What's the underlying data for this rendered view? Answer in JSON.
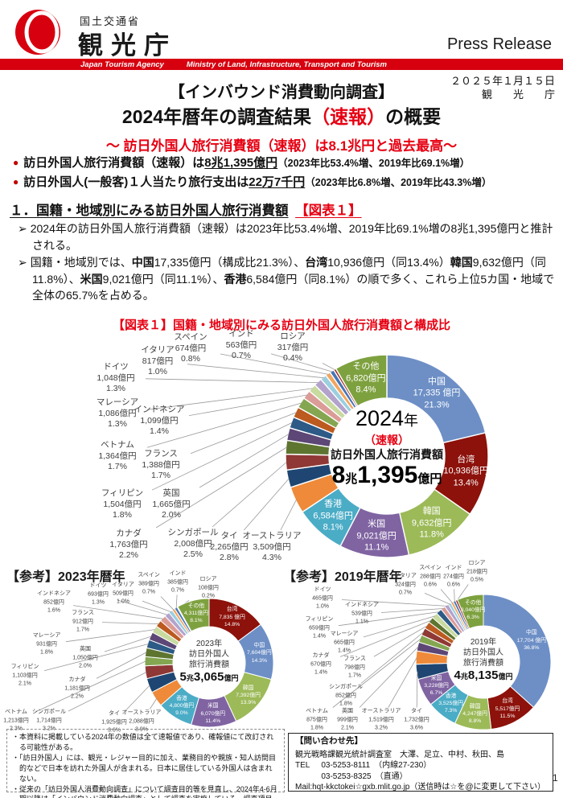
{
  "header": {
    "ministry": "国土交通省",
    "agency": "観光庁",
    "press_release": "Press Release",
    "banner_left": "Japan Tourism Agency",
    "banner_right": "Ministry of Land, Infrastructure, Transport and Tourism",
    "brand_red": "#d7000f"
  },
  "date_block": {
    "date": "２０２５年１月１５日",
    "org": "観　　光　　庁"
  },
  "title": {
    "survey": "【インバウンド消費動向調査】",
    "main_rich": [
      {
        "t": "2024年暦年の調査結果"
      },
      {
        "t": "（速報）",
        "red": 1
      },
      {
        "t": "の概要"
      }
    ],
    "subtitle": "～ 訪日外国人旅行消費額（速報）は8.1兆円と過去最高～"
  },
  "key_bullets": [
    [
      {
        "t": "訪日外国人旅行消費額（速報）は"
      },
      {
        "t": "8兆1,395億円",
        "u": 1
      },
      {
        "t": "（2023年比53.4%増、2019年比69.1%増）",
        "sm": 1
      }
    ],
    [
      {
        "t": "訪日外国人(一般客)１人当たり旅行支出は"
      },
      {
        "t": "22万7千円",
        "u": 1
      },
      {
        "t": "（2023年比6.8%増、2019年比43.3%増）",
        "sm": 1
      }
    ]
  ],
  "section1": {
    "heading_main": "１．国籍・地域別にみる訪日外国人旅行消費額",
    "heading_ref": "【図表１】",
    "point1": [
      {
        "t": "2024年の訪日外国人旅行消費額（速報）は2023年比53.4%増、2019年比69.1%増の8兆1,395億円と推計される。"
      }
    ],
    "point2": [
      {
        "t": "国籍・地域別では、"
      },
      {
        "t": "中国",
        "b": 1
      },
      {
        "t": "17,335億円（構成比21.3%）、"
      },
      {
        "t": "台湾",
        "b": 1
      },
      {
        "t": "10,936億円（同13.4%）"
      },
      {
        "t": "韓国",
        "b": 1
      },
      {
        "t": "9,632億円（同11.8%）、"
      },
      {
        "t": "米国",
        "b": 1
      },
      {
        "t": "9,021億円（同11.1%）、"
      },
      {
        "t": "香港",
        "b": 1
      },
      {
        "t": "6,584億円（同8.1%）の順で多く、これら上位5カ国・地域で全体の65.7%を占める。"
      }
    ]
  },
  "chart_data": [
    {
      "id": "y2024",
      "type": "pie",
      "title": "【図表１】国籍・地域別にみる訪日外国人旅行消費額と構成比",
      "unit": "億円",
      "legend_position": "callout-labels",
      "center": {
        "year_num": "2024",
        "year_suffix": "年",
        "note": "（速報）",
        "label": "訪日外国人旅行消費額",
        "t1": "8",
        "u1": "兆",
        "t2": "1,395",
        "u2": "億円"
      },
      "segments": [
        {
          "name": "中国",
          "value": 17335,
          "value_label": "17,335 億円",
          "pct": 21.3,
          "pct_label": "21.3%",
          "color": "#6D8FC6",
          "inside": true
        },
        {
          "name": "台湾",
          "value": 10936,
          "value_label": "10,936億円",
          "pct": 13.4,
          "pct_label": "13.4%",
          "color": "#8C120B",
          "inside": true
        },
        {
          "name": "韓国",
          "value": 9632,
          "value_label": "9,632億円",
          "pct": 11.8,
          "pct_label": "11.8%",
          "color": "#9CBA58",
          "inside": true
        },
        {
          "name": "米国",
          "value": 9021,
          "value_label": "9,021億円",
          "pct": 11.1,
          "pct_label": "11.1%",
          "color": "#8064A2",
          "inside": true
        },
        {
          "name": "香港",
          "value": 6584,
          "value_label": "6,584億円",
          "pct": 8.1,
          "pct_label": "8.1%",
          "color": "#4BACC6",
          "inside": true
        },
        {
          "name": "オーストラリア",
          "value": 3509,
          "value_label": "3,509億円",
          "pct": 4.3,
          "pct_label": "4.3%",
          "color": "#EE8A39",
          "inside": false
        },
        {
          "name": "タイ",
          "value": 2265,
          "value_label": "2,265億円",
          "pct": 2.8,
          "pct_label": "2.8%",
          "color": "#1F4672",
          "inside": false
        },
        {
          "name": "シンガポール",
          "value": 2008,
          "value_label": "2,008億円",
          "pct": 2.5,
          "pct_label": "2.5%",
          "color": "#8F3835",
          "inside": false
        },
        {
          "name": "カナダ",
          "value": 1763,
          "value_label": "1,763億円",
          "pct": 2.2,
          "pct_label": "2.2%",
          "color": "#5E7530",
          "inside": false
        },
        {
          "name": "英国",
          "value": 1665,
          "value_label": "1,665億円",
          "pct": 2.0,
          "pct_label": "2.0%",
          "color": "#5C4776",
          "inside": false
        },
        {
          "name": "フィリピン",
          "value": 1504,
          "value_label": "1,504億円",
          "pct": 1.8,
          "pct_label": "1.8%",
          "color": "#2D5A86",
          "inside": false
        },
        {
          "name": "フランス",
          "value": 1388,
          "value_label": "1,388億円",
          "pct": 1.7,
          "pct_label": "1.7%",
          "color": "#BC5A20",
          "inside": false
        },
        {
          "name": "ベトナム",
          "value": 1364,
          "value_label": "1,364億円",
          "pct": 1.7,
          "pct_label": "1.7%",
          "color": "#84A651",
          "inside": false
        },
        {
          "name": "インドネシア",
          "value": 1099,
          "value_label": "1,099億円",
          "pct": 1.4,
          "pct_label": "1.4%",
          "color": "#DB9C98",
          "inside": false
        },
        {
          "name": "マレーシア",
          "value": 1086,
          "value_label": "1,086億円",
          "pct": 1.3,
          "pct_label": "1.3%",
          "color": "#C8DA9F",
          "inside": false
        },
        {
          "name": "ドイツ",
          "value": 1048,
          "value_label": "1,048億円",
          "pct": 1.3,
          "pct_label": "1.3%",
          "color": "#B3A3CC",
          "inside": false
        },
        {
          "name": "イタリア",
          "value": 817,
          "value_label": "817億円",
          "pct": 1.0,
          "pct_label": "1.0%",
          "color": "#9BCFE0",
          "inside": false
        },
        {
          "name": "スペイン",
          "value": 674,
          "value_label": "674億円",
          "pct": 0.8,
          "pct_label": "0.8%",
          "color": "#F2A661",
          "inside": false
        },
        {
          "name": "インド",
          "value": 563,
          "value_label": "563億円",
          "pct": 0.7,
          "pct_label": "0.7%",
          "color": "#4775B5",
          "inside": false
        },
        {
          "name": "ロシア",
          "value": 317,
          "value_label": "317億円",
          "pct": 0.4,
          "pct_label": "0.4%",
          "color": "#9E2F2A",
          "inside": false
        },
        {
          "name": "その他",
          "value": 6820,
          "value_label": "6,820億円",
          "pct": 8.4,
          "pct_label": "8.4%",
          "color": "#7EA13F",
          "inside": true
        }
      ]
    },
    {
      "id": "y2023",
      "type": "pie",
      "title": "【参考】2023年暦年",
      "unit": "億円",
      "legend_position": "callout-labels",
      "center": {
        "year": "2023年",
        "label1": "訪日外国人",
        "label2": "旅行消費額",
        "t1": "5",
        "u1": "兆",
        "t2": "3,065",
        "u2": "億円"
      },
      "segments": [
        {
          "name": "台湾",
          "value": 7835,
          "value_label": "7,835 億円",
          "pct": 14.8,
          "pct_label": "14.8%",
          "color": "#8C120B",
          "inside": true
        },
        {
          "name": "中国",
          "value": 7604,
          "value_label": "7,604億円",
          "pct": 14.3,
          "pct_label": "14.3%",
          "color": "#6D8FC6",
          "inside": true
        },
        {
          "name": "韓国",
          "value": 7392,
          "value_label": "7,392億円",
          "pct": 13.9,
          "pct_label": "13.9%",
          "color": "#9CBA58",
          "inside": true
        },
        {
          "name": "米国",
          "value": 6070,
          "value_label": "6,070億円",
          "pct": 11.4,
          "pct_label": "11.4%",
          "color": "#8064A2",
          "inside": true
        },
        {
          "name": "香港",
          "value": 4800,
          "value_label": "4,800億円",
          "pct": 9.0,
          "pct_label": "9.0%",
          "color": "#4BACC6",
          "inside": true
        },
        {
          "name": "オーストラリア",
          "value": 2088,
          "value_label": "2,088億円",
          "pct": 3.9,
          "pct_label": "3.9%",
          "color": "#EE8A39",
          "inside": false
        },
        {
          "name": "タイ",
          "value": 1925,
          "value_label": "1,925億円",
          "pct": 3.6,
          "pct_label": "3.6%",
          "color": "#1F4672",
          "inside": false
        },
        {
          "name": "シンガポール",
          "value": 1714,
          "value_label": "1,714億円",
          "pct": 3.2,
          "pct_label": "3.2%",
          "color": "#8F3835",
          "inside": false
        },
        {
          "name": "ベトナム",
          "value": 1213,
          "value_label": "1,213億円",
          "pct": 2.3,
          "pct_label": "2.3%",
          "color": "#84A651",
          "inside": false
        },
        {
          "name": "カナダ",
          "value": 1181,
          "value_label": "1,181億円",
          "pct": 2.2,
          "pct_label": "2.2%",
          "color": "#5E7530",
          "inside": false
        },
        {
          "name": "フィリピン",
          "value": 1103,
          "value_label": "1,103億円",
          "pct": 2.1,
          "pct_label": "2.1%",
          "color": "#2D5A86",
          "inside": false
        },
        {
          "name": "英国",
          "value": 1050,
          "value_label": "1,050億円",
          "pct": 2.0,
          "pct_label": "2.0%",
          "color": "#5C4776",
          "inside": false
        },
        {
          "name": "マレーシア",
          "value": 931,
          "value_label": "931億円",
          "pct": 1.8,
          "pct_label": "1.8%",
          "color": "#C8DA9F",
          "inside": false
        },
        {
          "name": "フランス",
          "value": 912,
          "value_label": "912億円",
          "pct": 1.7,
          "pct_label": "1.7%",
          "color": "#BC5A20",
          "inside": false
        },
        {
          "name": "インドネシア",
          "value": 852,
          "value_label": "852億円",
          "pct": 1.6,
          "pct_label": "1.6%",
          "color": "#DB9C98",
          "inside": false
        },
        {
          "name": "ドイツ",
          "value": 693,
          "value_label": "693億円",
          "pct": 1.3,
          "pct_label": "1.3%",
          "color": "#B3A3CC",
          "inside": false
        },
        {
          "name": "イタリア",
          "value": 509,
          "value_label": "509億円",
          "pct": 1.0,
          "pct_label": "1.0%",
          "color": "#9BCFE0",
          "inside": false
        },
        {
          "name": "スペイン",
          "value": 389,
          "value_label": "389億円",
          "pct": 0.7,
          "pct_label": "0.7%",
          "color": "#F2A661",
          "inside": false
        },
        {
          "name": "インド",
          "value": 385,
          "value_label": "385億円",
          "pct": 0.7,
          "pct_label": "0.7%",
          "color": "#4775B5",
          "inside": false
        },
        {
          "name": "ロシア",
          "value": 108,
          "value_label": "108億円",
          "pct": 0.2,
          "pct_label": "0.2%",
          "color": "#9E2F2A",
          "inside": false
        },
        {
          "name": "その他",
          "value": 4311,
          "value_label": "4,311億円",
          "pct": 8.1,
          "pct_label": "8.1%",
          "color": "#7EA13F",
          "inside": true
        }
      ]
    },
    {
      "id": "y2019",
      "type": "pie",
      "title": "【参考】2019年暦年",
      "unit": "億円",
      "legend_position": "callout-labels",
      "center": {
        "year": "2019年",
        "label1": "訪日外国人",
        "label2": "旅行消費額",
        "t1": "4",
        "u1": "兆",
        "t2": "8,135",
        "u2": "億円"
      },
      "segments": [
        {
          "name": "中国",
          "value": 17704,
          "value_label": "17,704 億円",
          "pct": 36.8,
          "pct_label": "36.8%",
          "color": "#6D8FC6",
          "inside": true
        },
        {
          "name": "台湾",
          "value": 5517,
          "value_label": "5,517億円",
          "pct": 11.5,
          "pct_label": "11.5%",
          "color": "#8C120B",
          "inside": true
        },
        {
          "name": "韓国",
          "value": 4247,
          "value_label": "4,247億円",
          "pct": 8.8,
          "pct_label": "8.8%",
          "color": "#9CBA58",
          "inside": true
        },
        {
          "name": "香港",
          "value": 3525,
          "value_label": "3,525億円",
          "pct": 7.3,
          "pct_label": "7.3%",
          "color": "#4BACC6",
          "inside": true
        },
        {
          "name": "米国",
          "value": 3228,
          "value_label": "3,228億円",
          "pct": 6.7,
          "pct_label": "6.7%",
          "color": "#8064A2",
          "inside": true
        },
        {
          "name": "タイ",
          "value": 1732,
          "value_label": "1,732億円",
          "pct": 3.6,
          "pct_label": "3.6%",
          "color": "#1F4672",
          "inside": false
        },
        {
          "name": "オーストラリア",
          "value": 1519,
          "value_label": "1,519億円",
          "pct": 3.2,
          "pct_label": "3.2%",
          "color": "#EE8A39",
          "inside": false
        },
        {
          "name": "英国",
          "value": 999,
          "value_label": "999億円",
          "pct": 2.1,
          "pct_label": "2.1%",
          "color": "#5C4776",
          "inside": false
        },
        {
          "name": "ベトナム",
          "value": 875,
          "value_label": "875億円",
          "pct": 1.8,
          "pct_label": "1.8%",
          "color": "#84A651",
          "inside": false
        },
        {
          "name": "シンガポール",
          "value": 852,
          "value_label": "852億円",
          "pct": 1.8,
          "pct_label": "1.8%",
          "color": "#8F3835",
          "inside": false
        },
        {
          "name": "フランス",
          "value": 798,
          "value_label": "798億円",
          "pct": 1.7,
          "pct_label": "1.7%",
          "color": "#BC5A20",
          "inside": false
        },
        {
          "name": "カナダ",
          "value": 670,
          "value_label": "670億円",
          "pct": 1.4,
          "pct_label": "1.4%",
          "color": "#5E7530",
          "inside": false
        },
        {
          "name": "マレーシア",
          "value": 665,
          "value_label": "665億円",
          "pct": 1.4,
          "pct_label": "1.4%",
          "color": "#C8DA9F",
          "inside": false
        },
        {
          "name": "フィリピン",
          "value": 659,
          "value_label": "659億円",
          "pct": 1.4,
          "pct_label": "1.4%",
          "color": "#2D5A86",
          "inside": false
        },
        {
          "name": "インドネシア",
          "value": 539,
          "value_label": "539億円",
          "pct": 1.1,
          "pct_label": "1.1%",
          "color": "#DB9C98",
          "inside": false
        },
        {
          "name": "ドイツ",
          "value": 465,
          "value_label": "465億円",
          "pct": 1.0,
          "pct_label": "1.0%",
          "color": "#B3A3CC",
          "inside": false
        },
        {
          "name": "イタリア",
          "value": 324,
          "value_label": "324億円",
          "pct": 0.7,
          "pct_label": "0.7%",
          "color": "#9BCFE0",
          "inside": false
        },
        {
          "name": "スペイン",
          "value": 288,
          "value_label": "288億円",
          "pct": 0.6,
          "pct_label": "0.6%",
          "color": "#F2A661",
          "inside": false
        },
        {
          "name": "インド",
          "value": 274,
          "value_label": "274億円",
          "pct": 0.6,
          "pct_label": "0.6%",
          "color": "#4775B5",
          "inside": false
        },
        {
          "name": "ロシア",
          "value": 218,
          "value_label": "218億円",
          "pct": 0.5,
          "pct_label": "0.5%",
          "color": "#9E2F2A",
          "inside": false
        },
        {
          "name": "その他",
          "value": 3040,
          "value_label": "3,040億円",
          "pct": 6.3,
          "pct_label": "6.3%",
          "color": "#7EA13F",
          "inside": true
        }
      ]
    }
  ],
  "notes": [
    "本資料に掲載している2024年の数値は全て速報値であり、確報値にて改訂される可能性がある。",
    "「訪日外国人」には、観光・レジャー目的に加え、業務目的や親族・知人訪問目的などで日本を訪れた外国人が含まれる。日本に居住している外国人は含まれない。",
    "従来の「訪日外国人消費動向調査」について調査目的等を見直し、2024年4-6月期以降は「インバウンド消費動向調査」として調査を実施している。調査項目や推計方法等は変更していないため、2023年以前のデータとの比較は可能である。"
  ],
  "contact": {
    "heading": "【問い合わせ先】",
    "line1": "観光戦略課観光統計調査室　大澤、足立、中村、秋田、島",
    "tel_label": "TEL",
    "tel1": "03-5253-8111　（内線27-230）",
    "tel2": "03-5253-8325　（直通）",
    "mail": "Mail:hqt-kkctokei☆gxb.mlit.go.jp（送信時は☆を@に変更して下さい）"
  },
  "page_number": "1"
}
